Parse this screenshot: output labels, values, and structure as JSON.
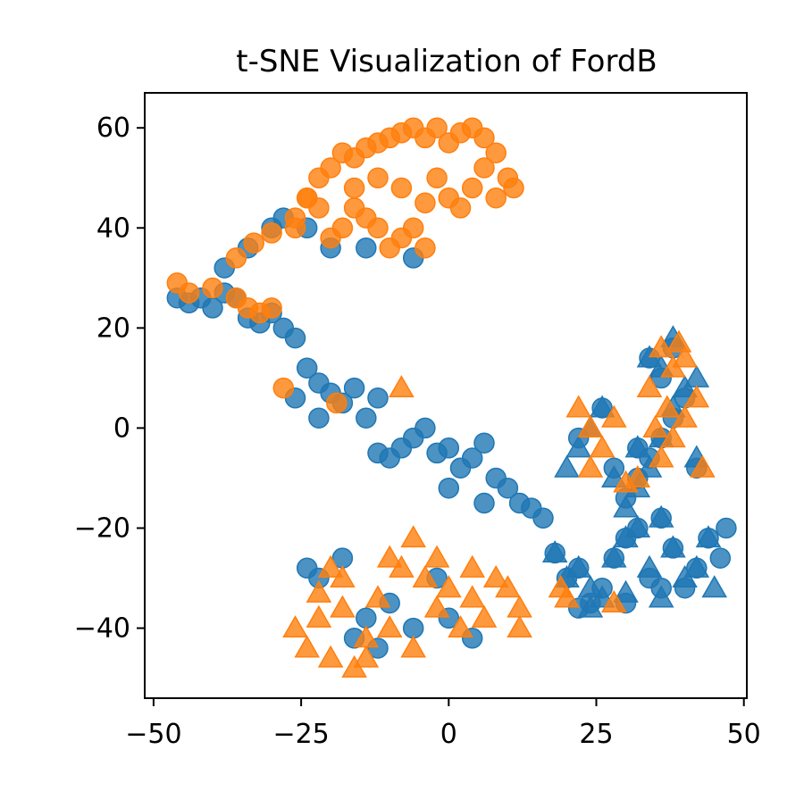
{
  "chart_data": {
    "type": "scatter",
    "title": "t-SNE Visualization of FordB",
    "xlabel": "",
    "ylabel": "",
    "xlim": [
      -51.5,
      50.5
    ],
    "ylim": [
      -54,
      67
    ],
    "x_ticks": [
      -50,
      -25,
      0,
      25,
      50
    ],
    "x_tick_labels": [
      "−50",
      "−25",
      "0",
      "25",
      "50"
    ],
    "y_ticks": [
      -40,
      -20,
      0,
      20,
      40,
      60
    ],
    "y_tick_labels": [
      "−40",
      "−20",
      "0",
      "20",
      "40",
      "60"
    ],
    "grid": false,
    "legend": "none",
    "marker_alpha": 0.8,
    "series": [
      {
        "marker": "circle",
        "color": "#1f77b4",
        "points": [
          [
            -46,
            26
          ],
          [
            -44,
            25
          ],
          [
            -42,
            26
          ],
          [
            -40,
            24
          ],
          [
            -38,
            27
          ],
          [
            -36,
            26
          ],
          [
            -34,
            22
          ],
          [
            -32,
            21
          ],
          [
            -30,
            23
          ],
          [
            -28,
            20
          ],
          [
            -26,
            18
          ],
          [
            -24,
            12
          ],
          [
            -22,
            9
          ],
          [
            -20,
            7
          ],
          [
            -18,
            5
          ],
          [
            -16,
            8
          ],
          [
            -14,
            2
          ],
          [
            -12,
            6
          ],
          [
            -12,
            -5
          ],
          [
            -10,
            -6
          ],
          [
            -8,
            -4
          ],
          [
            -6,
            -2
          ],
          [
            -4,
            0
          ],
          [
            -2,
            -5
          ],
          [
            0,
            -4
          ],
          [
            2,
            -8
          ],
          [
            4,
            -6
          ],
          [
            6,
            -3
          ],
          [
            8,
            -10
          ],
          [
            10,
            -12
          ],
          [
            12,
            -15
          ],
          [
            14,
            -16
          ],
          [
            16,
            -18
          ],
          [
            6,
            -15
          ],
          [
            0,
            -12
          ],
          [
            -38,
            32
          ],
          [
            -34,
            36
          ],
          [
            -30,
            40
          ],
          [
            -28,
            42
          ],
          [
            -24,
            40
          ],
          [
            -20,
            36
          ],
          [
            -14,
            36
          ],
          [
            -6,
            34
          ],
          [
            -22,
            2
          ],
          [
            -26,
            6
          ],
          [
            18,
            -25
          ],
          [
            20,
            -30
          ],
          [
            22,
            -28
          ],
          [
            26,
            -32
          ],
          [
            28,
            -26
          ],
          [
            30,
            -22
          ],
          [
            32,
            -20
          ],
          [
            34,
            -30
          ],
          [
            36,
            -18
          ],
          [
            38,
            -24
          ],
          [
            40,
            -32
          ],
          [
            42,
            -28
          ],
          [
            44,
            -22
          ],
          [
            46,
            -26
          ],
          [
            47,
            -20
          ],
          [
            36,
            -32
          ],
          [
            30,
            -35
          ],
          [
            24,
            -35
          ],
          [
            22,
            -36
          ],
          [
            32,
            -10
          ],
          [
            34,
            -6
          ],
          [
            36,
            -2
          ],
          [
            38,
            2
          ],
          [
            40,
            6
          ],
          [
            42,
            -8
          ],
          [
            36,
            10
          ],
          [
            38,
            16
          ],
          [
            34,
            14
          ],
          [
            30,
            -14
          ],
          [
            32,
            -4
          ],
          [
            28,
            -8
          ],
          [
            26,
            4
          ],
          [
            22,
            -2
          ],
          [
            -24,
            -28
          ],
          [
            -18,
            -26
          ],
          [
            -22,
            -30
          ],
          [
            -16,
            -42
          ],
          [
            -14,
            -38
          ],
          [
            -12,
            -44
          ],
          [
            -10,
            -35
          ],
          [
            -6,
            -40
          ],
          [
            -2,
            -30
          ],
          [
            0,
            -38
          ],
          [
            4,
            -42
          ]
        ]
      },
      {
        "marker": "triangle",
        "color": "#1f77b4",
        "points": [
          [
            18,
            -25
          ],
          [
            20,
            -30
          ],
          [
            22,
            -28
          ],
          [
            24,
            -32
          ],
          [
            26,
            -34
          ],
          [
            28,
            -26
          ],
          [
            30,
            -22
          ],
          [
            32,
            -20
          ],
          [
            34,
            -28
          ],
          [
            36,
            -18
          ],
          [
            38,
            -24
          ],
          [
            40,
            -30
          ],
          [
            42,
            -28
          ],
          [
            44,
            -22
          ],
          [
            45,
            -32
          ],
          [
            36,
            -34
          ],
          [
            30,
            -33
          ],
          [
            24,
            -36
          ],
          [
            32,
            -12
          ],
          [
            34,
            -8
          ],
          [
            36,
            -2
          ],
          [
            38,
            4
          ],
          [
            40,
            8
          ],
          [
            42,
            -6
          ],
          [
            36,
            12
          ],
          [
            38,
            18
          ],
          [
            34,
            14
          ],
          [
            30,
            -16
          ],
          [
            32,
            -4
          ],
          [
            28,
            -10
          ],
          [
            26,
            4
          ],
          [
            22,
            -4
          ],
          [
            24,
            0
          ],
          [
            42,
            10
          ],
          [
            20,
            -8
          ]
        ]
      },
      {
        "marker": "circle",
        "color": "#ff7f0e",
        "points": [
          [
            -46,
            29
          ],
          [
            -44,
            27
          ],
          [
            -40,
            28
          ],
          [
            -36,
            26
          ],
          [
            -34,
            24
          ],
          [
            -32,
            23
          ],
          [
            -30,
            24
          ],
          [
            -28,
            8
          ],
          [
            -19,
            5
          ],
          [
            -36,
            34
          ],
          [
            -33,
            37
          ],
          [
            -30,
            39
          ],
          [
            -26,
            42
          ],
          [
            -24,
            46
          ],
          [
            -22,
            50
          ],
          [
            -20,
            52
          ],
          [
            -18,
            55
          ],
          [
            -16,
            54
          ],
          [
            -14,
            56
          ],
          [
            -12,
            57
          ],
          [
            -10,
            58
          ],
          [
            -8,
            59
          ],
          [
            -6,
            60
          ],
          [
            -4,
            58
          ],
          [
            -2,
            60
          ],
          [
            0,
            57
          ],
          [
            2,
            59
          ],
          [
            4,
            60
          ],
          [
            6,
            58
          ],
          [
            8,
            55
          ],
          [
            10,
            50
          ],
          [
            11,
            48
          ],
          [
            8,
            46
          ],
          [
            4,
            48
          ],
          [
            2,
            44
          ],
          [
            0,
            46
          ],
          [
            -2,
            50
          ],
          [
            -4,
            45
          ],
          [
            -6,
            40
          ],
          [
            -8,
            38
          ],
          [
            -10,
            36
          ],
          [
            -12,
            40
          ],
          [
            -14,
            42
          ],
          [
            -16,
            44
          ],
          [
            -18,
            40
          ],
          [
            -20,
            38
          ],
          [
            -22,
            44
          ],
          [
            -24,
            46
          ],
          [
            -26,
            40
          ],
          [
            -4,
            36
          ],
          [
            -8,
            48
          ],
          [
            -12,
            50
          ],
          [
            -16,
            48
          ],
          [
            6,
            52
          ]
        ]
      },
      {
        "marker": "triangle",
        "color": "#ff7f0e",
        "points": [
          [
            -8,
            8
          ],
          [
            -26,
            -40
          ],
          [
            -24,
            -44
          ],
          [
            -22,
            -38
          ],
          [
            -20,
            -46
          ],
          [
            -18,
            -36
          ],
          [
            -16,
            -48
          ],
          [
            -14,
            -42
          ],
          [
            -12,
            -34
          ],
          [
            -10,
            -40
          ],
          [
            -8,
            -28
          ],
          [
            -6,
            -22
          ],
          [
            -4,
            -30
          ],
          [
            -2,
            -36
          ],
          [
            0,
            -32
          ],
          [
            2,
            -40
          ],
          [
            4,
            -34
          ],
          [
            6,
            -38
          ],
          [
            8,
            -30
          ],
          [
            10,
            -32
          ],
          [
            12,
            -36
          ],
          [
            -20,
            -28
          ],
          [
            -18,
            -30
          ],
          [
            -22,
            -33
          ],
          [
            -10,
            -26
          ],
          [
            -6,
            -44
          ],
          [
            -14,
            -46
          ],
          [
            -2,
            -26
          ],
          [
            4,
            -28
          ],
          [
            12,
            -40
          ],
          [
            19,
            -32
          ],
          [
            20,
            -34
          ],
          [
            28,
            -35
          ],
          [
            30,
            -11
          ],
          [
            32,
            -10
          ],
          [
            22,
            4
          ],
          [
            24,
            0
          ],
          [
            26,
            -4
          ],
          [
            24,
            -8
          ],
          [
            28,
            2
          ],
          [
            34,
            8
          ],
          [
            36,
            16
          ],
          [
            38,
            12
          ],
          [
            40,
            14
          ],
          [
            39,
            17
          ],
          [
            37,
            4
          ],
          [
            35,
            0
          ],
          [
            38,
            -2
          ],
          [
            42,
            6
          ],
          [
            43,
            -8
          ],
          [
            40,
            2
          ],
          [
            36,
            -6
          ]
        ]
      }
    ]
  }
}
